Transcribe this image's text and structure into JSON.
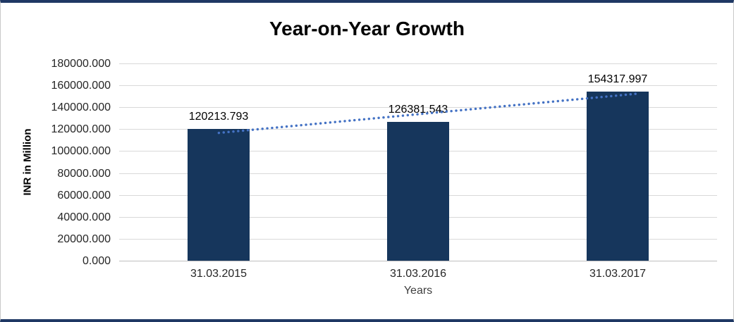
{
  "chart": {
    "title": "Year-on-Year Growth",
    "y_axis_title": "INR in Million",
    "x_axis_title": "Years"
  },
  "chart_data": {
    "type": "bar",
    "title": "Year-on-Year Growth",
    "xlabel": "Years",
    "ylabel": "INR in Million",
    "categories": [
      "31.03.2015",
      "31.03.2016",
      "31.03.2017"
    ],
    "values": [
      120213.793,
      126381.543,
      154317.997
    ],
    "data_labels": [
      "120213.793",
      "126381.543",
      "154317.997"
    ],
    "ylim": [
      0,
      180000
    ],
    "ytick_step": 20000,
    "ytick_labels": [
      "0.000",
      "20000.000",
      "40000.000",
      "60000.000",
      "80000.000",
      "100000.000",
      "120000.000",
      "140000.000",
      "160000.000",
      "180000.000"
    ],
    "grid": true,
    "legend": "none",
    "bar_color": "#16365c",
    "gridline_color": "#d9d9d9",
    "axis_line_color": "#bfbfbf",
    "trendline": {
      "style": "dotted",
      "color": "#4472c4"
    }
  }
}
